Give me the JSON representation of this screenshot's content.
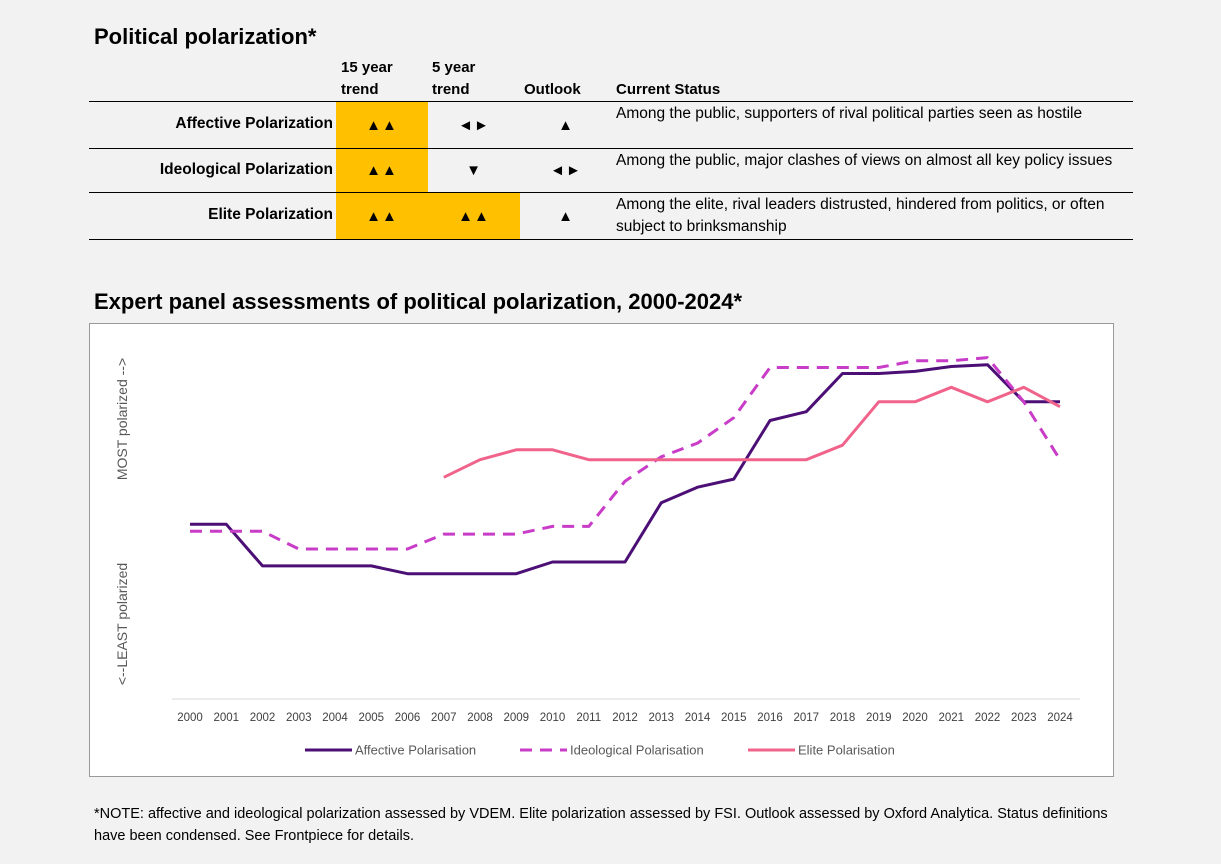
{
  "title": "Political polarization*",
  "table": {
    "headers": {
      "trend15": "15 year\ntrend",
      "trend5": "5 year\ntrend",
      "outlook": "Outlook",
      "status": "Current Status"
    },
    "rows": [
      {
        "label": "Affective Polarization",
        "trend15": "▲▲",
        "trend15_highlight": true,
        "trend5": "◄►",
        "trend5_highlight": false,
        "outlook": "▲",
        "status": "Among the public, supporters of rival political parties seen as hostile"
      },
      {
        "label": "Ideological Polarization",
        "trend15": "▲▲",
        "trend15_highlight": true,
        "trend5": "▼",
        "trend5_highlight": false,
        "outlook": "◄►",
        "status": "Among the public, major clashes of views on almost all key policy issues"
      },
      {
        "label": "Elite Polarization",
        "trend15": "▲▲",
        "trend15_highlight": true,
        "trend5": "▲▲",
        "trend5_highlight": true,
        "outlook": "▲",
        "status": "Among the elite, rival leaders distrusted, hindered from politics, or often subject to brinksmanship"
      }
    ],
    "highlight_color": "#ffc000"
  },
  "chart_title": "Expert panel assessments of political polarization, 2000-2024*",
  "chart_data": {
    "type": "line",
    "x": [
      "2000",
      "2001",
      "2002",
      "2003",
      "2004",
      "2005",
      "2006",
      "2007",
      "2008",
      "2009",
      "2010",
      "2011",
      "2012",
      "2013",
      "2014",
      "2015",
      "2016",
      "2017",
      "2018",
      "2019",
      "2020",
      "2021",
      "2022",
      "2023",
      "2024"
    ],
    "ylabel_top": "MOST polarized -->",
    "ylabel_bottom": "<--LEAST polarized",
    "ylim": [
      0,
      100
    ],
    "grid": false,
    "legend_position": "bottom",
    "series": [
      {
        "name": "Affective Polarisation",
        "color": "#4b0f75",
        "style": "solid",
        "values": [
          49.5,
          49.5,
          37.7,
          37.7,
          37.7,
          37.7,
          35.5,
          35.5,
          35.5,
          35.5,
          38.8,
          38.8,
          38.8,
          55.6,
          60,
          62.3,
          78.9,
          81.4,
          92.2,
          92.2,
          92.8,
          94.2,
          94.7,
          84.2,
          84.2
        ]
      },
      {
        "name": "Ideological Polarisation",
        "color": "#c83cc8",
        "style": "dashed",
        "values": [
          47.5,
          47.5,
          47.5,
          42.5,
          42.5,
          42.5,
          42.5,
          46.7,
          46.7,
          46.7,
          48.9,
          48.9,
          61.7,
          68.6,
          72.5,
          79.7,
          93.9,
          93.9,
          93.9,
          93.9,
          95.8,
          95.8,
          96.7,
          84.2,
          67.8
        ]
      },
      {
        "name": "Elite Polarisation",
        "color": "#f0648c",
        "style": "solid",
        "values": [
          null,
          null,
          null,
          null,
          null,
          null,
          null,
          62.8,
          67.8,
          70.6,
          70.6,
          67.8,
          67.8,
          67.8,
          67.8,
          67.8,
          67.8,
          67.8,
          71.9,
          84.2,
          84.2,
          88.3,
          84.2,
          88.3,
          82.8
        ]
      }
    ]
  },
  "footnote": "*NOTE: affective and ideological polarization assessed by VDEM. Elite polarization assessed by FSI. Outlook assessed by Oxford Analytica. Status definitions have been condensed. See Frontpiece for details."
}
